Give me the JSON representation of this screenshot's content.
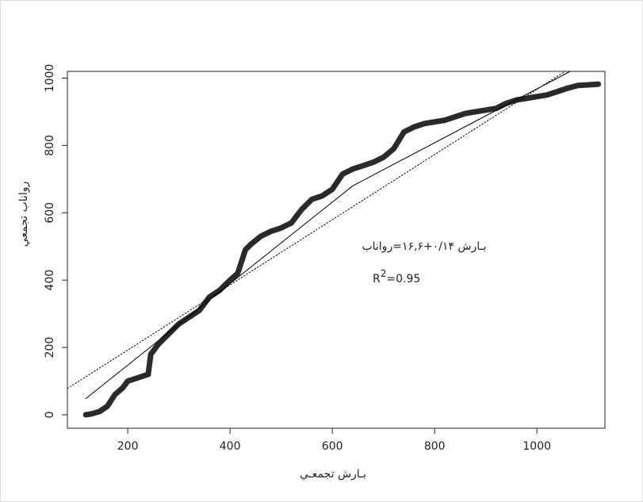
{
  "chart_data": {
    "type": "scatter",
    "x_label": "بـارش تجمعـي",
    "y_label": "رواناب تجمعي",
    "annotations": [
      "بـارش ۰/۱۴+۱۶,۶=رواناب"
    ],
    "r2": {
      "base": "R",
      "sup": "2",
      "rest": "=0.95"
    },
    "xlim": [
      82,
      1133
    ],
    "ylim": [
      -40,
      1020
    ],
    "xticks": [
      200,
      400,
      600,
      800,
      1000
    ],
    "yticks": [
      0,
      200,
      400,
      600,
      800,
      1000
    ],
    "series": [
      {
        "type": "line",
        "color": "#2a2a2a",
        "width": 7,
        "dash": false,
        "x": [
          118,
          130,
          145,
          160,
          175,
          190,
          200,
          220,
          240,
          245,
          260,
          280,
          300,
          320,
          340,
          360,
          380,
          400,
          415,
          430,
          440,
          460,
          480,
          500,
          520,
          540,
          560,
          580,
          600,
          620,
          640,
          660,
          680,
          700,
          720,
          740,
          760,
          780,
          800,
          820,
          840,
          860,
          880,
          900,
          920,
          940,
          960,
          980,
          1000,
          1020,
          1040,
          1060,
          1080,
          1100,
          1120
        ],
        "values": [
          0,
          3,
          10,
          25,
          60,
          80,
          100,
          110,
          120,
          180,
          210,
          240,
          270,
          290,
          310,
          350,
          370,
          400,
          420,
          490,
          505,
          530,
          545,
          555,
          570,
          610,
          640,
          650,
          670,
          715,
          730,
          740,
          750,
          765,
          790,
          840,
          855,
          865,
          870,
          875,
          885,
          895,
          900,
          905,
          910,
          925,
          935,
          940,
          945,
          950,
          960,
          970,
          978,
          980,
          982
        ]
      },
      {
        "type": "line",
        "color": "#000000",
        "width": 1,
        "dash": false,
        "x": [
          118,
          640,
          1065
        ],
        "values": [
          48,
          680,
          1020
        ]
      },
      {
        "type": "line",
        "color": "#000000",
        "width": 1,
        "dash": true,
        "x": [
          82,
          1055
        ],
        "values": [
          78,
          1020
        ]
      }
    ]
  }
}
